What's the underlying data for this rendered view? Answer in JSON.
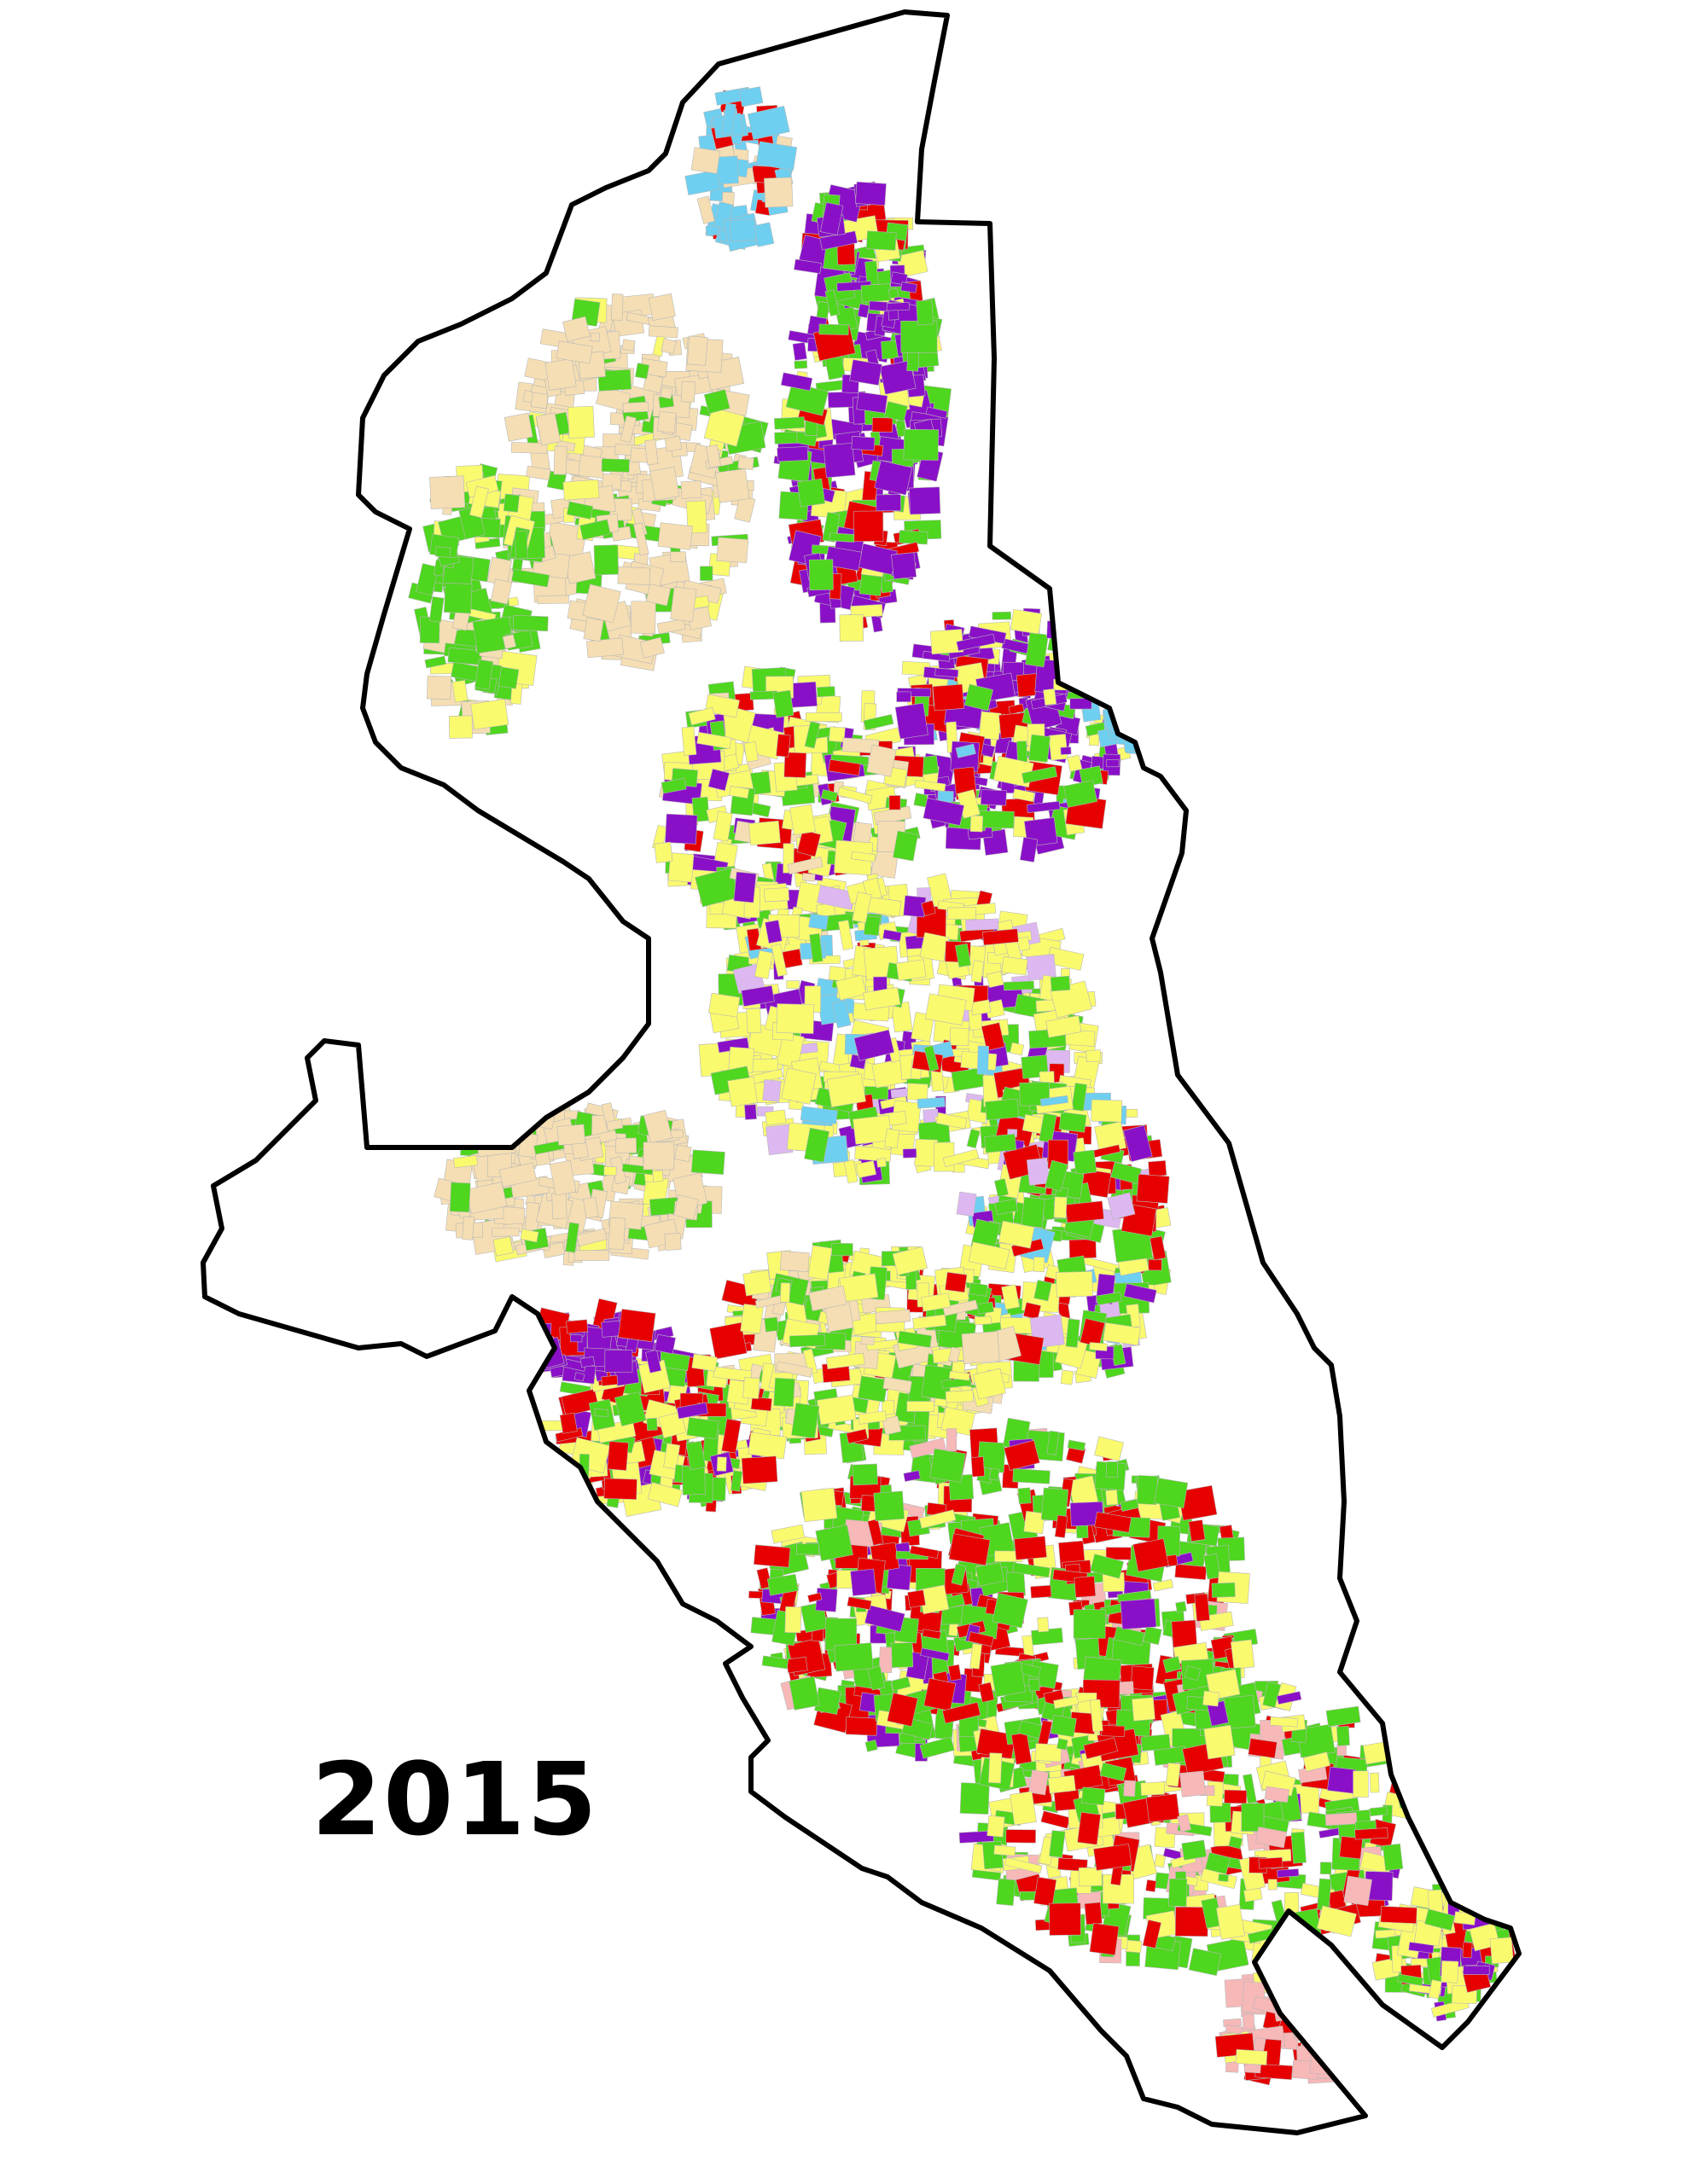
{
  "map": {
    "year_label": "2015",
    "background_color": "#ffffff",
    "boundary_color": "#000000",
    "parcel_outline_color": "#b8b8b8",
    "land_use_colors": [
      {
        "class": "tan",
        "color": "#f5deb3"
      },
      {
        "class": "yellow",
        "color": "#fafa6e"
      },
      {
        "class": "green",
        "color": "#4fd61e"
      },
      {
        "class": "purple",
        "color": "#8a10c8"
      },
      {
        "class": "red",
        "color": "#e60000"
      },
      {
        "class": "light-blue",
        "color": "#6ecff0"
      },
      {
        "class": "pink",
        "color": "#f7b8b8"
      },
      {
        "class": "lavender",
        "color": "#ddb8f0"
      },
      {
        "class": "light-green",
        "color": "#c9f0b8"
      }
    ]
  }
}
